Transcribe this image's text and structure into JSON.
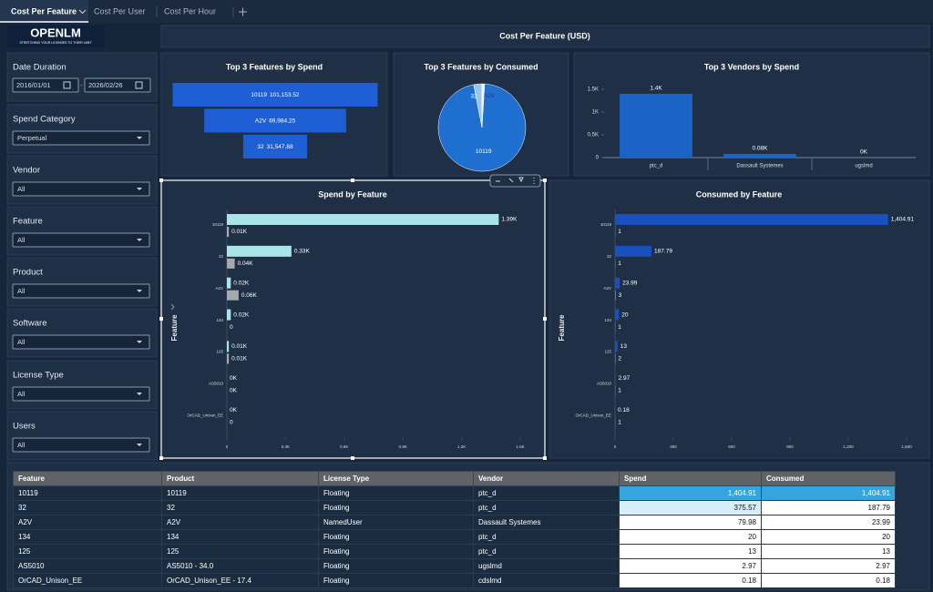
{
  "tabs": [
    "Cost Per Feature",
    "Cost Per User",
    "Cost Per Hour"
  ],
  "logo": {
    "name": "OPENLM",
    "tagline": "STRETCHING YOUR LICENSES TO THEIR LIMIT"
  },
  "banner": "Cost Per Feature (USD)",
  "date_filter": {
    "label": "Date Duration",
    "start": "2016/01/01",
    "separator": "-",
    "end": "2026/02/26"
  },
  "filters": [
    {
      "label": "Spend Category",
      "value": "Perpetual"
    },
    {
      "label": "Vendor",
      "value": "All"
    },
    {
      "label": "Feature",
      "value": "All"
    },
    {
      "label": "Product",
      "value": "All"
    },
    {
      "label": "Software",
      "value": "All"
    },
    {
      "label": "License Type",
      "value": "All"
    },
    {
      "label": "Users",
      "value": "All"
    }
  ],
  "chart_data": [
    {
      "type": "funnel",
      "title": "Top 3 Features by Spend",
      "categories": [
        "10119",
        "A2V",
        "32"
      ],
      "values": [
        101153.52,
        69984.25,
        31547.88
      ],
      "value_labels": [
        "101,153.52",
        "69,984.25",
        "31,547.88"
      ],
      "color": "#1f5fd6"
    },
    {
      "type": "pie",
      "title": "Top 3 Features by Consumed",
      "categories": [
        "10119",
        "32",
        "A2V"
      ],
      "values": [
        96,
        3,
        1
      ],
      "colors": [
        "#1f6fd1",
        "#9cc2ee",
        "#eef4fc"
      ]
    },
    {
      "type": "bar",
      "title": "Top 3 Vendors by Spend",
      "categories": [
        "ptc_d",
        "Dassault Systemes",
        "ugslmd"
      ],
      "values": [
        1400,
        80,
        0
      ],
      "value_labels": [
        "1.4K",
        "0.08K",
        "0K"
      ],
      "color": "#1b63c4",
      "ylim": [
        0,
        1500
      ],
      "yticks": [
        0,
        {
          "value": 500,
          "label": "0.5K"
        },
        {
          "value": 1000,
          "label": "1K"
        },
        {
          "value": 1500,
          "label": "1.5K"
        }
      ],
      "grid": false
    },
    {
      "type": "hbar",
      "title": "Spend by Feature",
      "y_label": "Feature",
      "categories": [
        "10119",
        "32",
        "A2V",
        "134",
        "125",
        "AS5010",
        "OrCAD_Unison_EE"
      ],
      "series": [
        {
          "color": "#a8e4e8",
          "values": [
            1390,
            330,
            20,
            20,
            10,
            0,
            0
          ],
          "value_labels": [
            "1.39K",
            "0.33K",
            "0.02K",
            "0.02K",
            "0.01K",
            "0K",
            "0K"
          ]
        },
        {
          "color": "#a9a9a9",
          "values": [
            10,
            40,
            60,
            0,
            10,
            0,
            0
          ],
          "value_labels": [
            "0.01K",
            "0.04K",
            "0.06K",
            "0",
            "0.01K",
            "0K",
            "0"
          ]
        }
      ],
      "xlim": [
        0,
        1500
      ],
      "xticks": [
        0,
        {
          "value": 300,
          "label": "0.3K"
        },
        {
          "value": 600,
          "label": "0.6K"
        },
        {
          "value": 900,
          "label": "0.9K"
        },
        {
          "value": 1200,
          "label": "1.2K"
        },
        {
          "value": 1500,
          "label": "1.5K"
        }
      ],
      "grid": false
    },
    {
      "type": "hbar",
      "title": "Consumed by Feature",
      "y_label": "Feature",
      "categories": [
        "10119",
        "32",
        "A2V",
        "134",
        "125",
        "AS5010",
        "OrCAD_Unison_EE"
      ],
      "series": [
        {
          "color": "#1a4fc0",
          "values": [
            1404.91,
            187.79,
            23.99,
            20,
            13,
            2.97,
            0.18
          ],
          "value_labels": [
            "1,404.91",
            "187.79",
            "23.99",
            "20",
            "13",
            "2.97",
            "0.18"
          ]
        },
        {
          "color": "#6fa0e0",
          "values": [
            1,
            1,
            3,
            1,
            2,
            1,
            1
          ]
        }
      ],
      "xlim": [
        0,
        1500
      ],
      "xticks": [
        0,
        300,
        600,
        900,
        {
          "value": 1200,
          "label": "1,200"
        },
        {
          "value": 1500,
          "label": "1,500"
        }
      ],
      "grid": false
    }
  ],
  "table": {
    "header": [
      "Feature",
      "Product",
      "License Type",
      "Vendor",
      "Spend",
      "Consumed"
    ],
    "rows": [
      [
        "10119",
        "10119",
        "Floating",
        "ptc_d",
        "1,404.91",
        "1,404.91"
      ],
      [
        "32",
        "32",
        "Floating",
        "ptc_d",
        "375.57",
        "187.79"
      ],
      [
        "A2V",
        "A2V",
        "NamedUser",
        "Dassault Systemes",
        "79.98",
        "23.99"
      ],
      [
        "134",
        "134",
        "Floating",
        "ptc_d",
        "20",
        "20"
      ],
      [
        "125",
        "125",
        "Floating",
        "ptc_d",
        "13",
        "13"
      ],
      [
        "AS5010",
        "AS5010 - 34.0",
        "Floating",
        "ugslmd",
        "2.97",
        "2.97"
      ],
      [
        "OrCAD_Unison_EE",
        "OrCAD_Unison_EE - 17.4",
        "Floating",
        "cdslmd",
        "0.18",
        "0.18"
      ]
    ]
  }
}
